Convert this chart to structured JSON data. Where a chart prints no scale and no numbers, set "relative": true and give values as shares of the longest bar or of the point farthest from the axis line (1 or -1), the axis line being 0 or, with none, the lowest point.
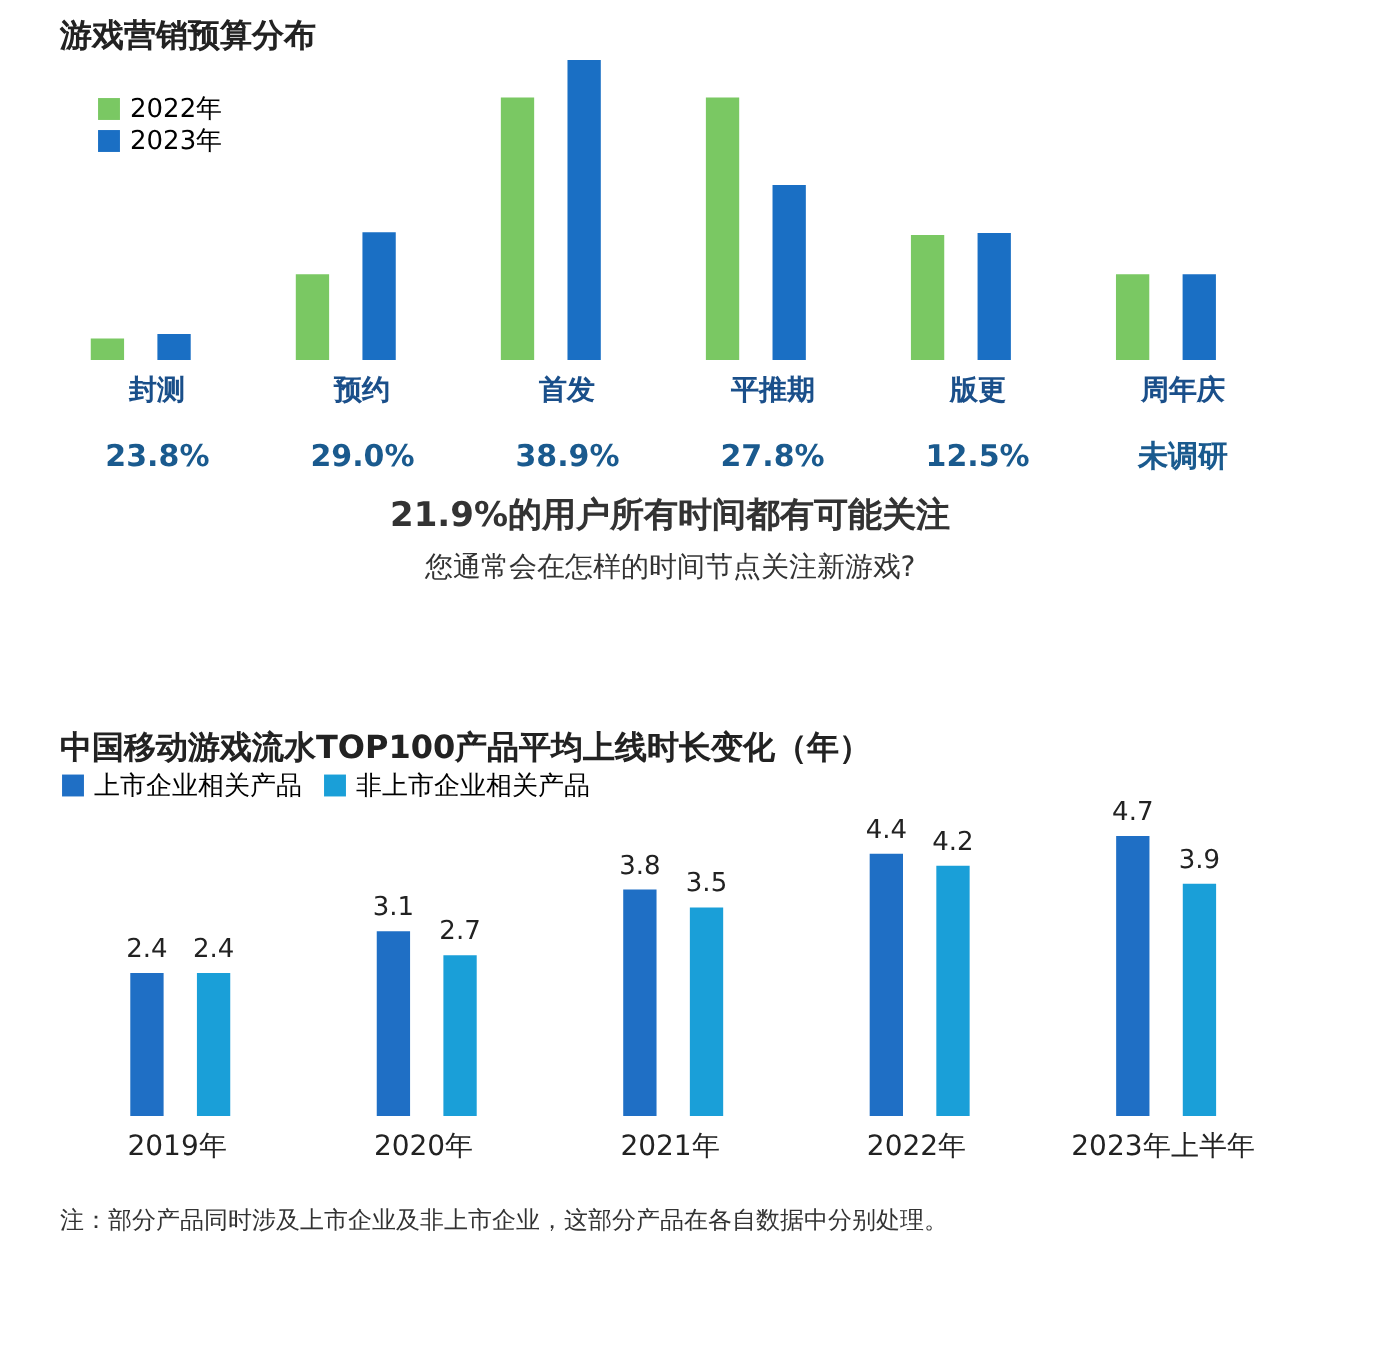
{
  "chart_data": [
    {
      "type": "bar",
      "title": "游戏营销预算分布",
      "relative": true,
      "legend": "top left",
      "categories": [
        "封测",
        "预约",
        "首发",
        "平推期",
        "版更",
        "周年庆"
      ],
      "series": [
        {
          "name": "2022年",
          "color": "#7ac863",
          "values": [
            0.072,
            0.286,
            0.875,
            0.875,
            0.417,
            0.286
          ]
        },
        {
          "name": "2023年",
          "color": "#1a6fc4",
          "values": [
            0.087,
            0.426,
            1.0,
            0.583,
            0.423,
            0.286
          ]
        }
      ],
      "annotations": [
        "23.8%",
        "29.0%",
        "38.9%",
        "27.8%",
        "12.5%",
        "未调研",
        "21.9%的用户所有时间都有可能关注",
        "您通常会在怎样的时间节点关注新游戏?"
      ]
    },
    {
      "type": "bar",
      "title": "中国移动游戏流水TOP100产品平均上线时长变化（年）",
      "legend": "top",
      "data_labels": true,
      "tick_labels": "x",
      "categories": [
        "2019年",
        "2020年",
        "2021年",
        "2022年",
        "2023年上半年"
      ],
      "series": [
        {
          "name": "上市企业相关产品",
          "color": "#1f6fc5",
          "values": [
            2.4,
            3.1,
            3.8,
            4.4,
            4.7
          ]
        },
        {
          "name": "非上市企业相关产品",
          "color": "#1a9fd8",
          "values": [
            2.4,
            2.7,
            3.5,
            4.2,
            3.9
          ]
        }
      ],
      "annotations": [
        "注：部分产品同时涉及上市企业及非上市企业，这部分产品在各自数据中分别处理。"
      ]
    }
  ]
}
